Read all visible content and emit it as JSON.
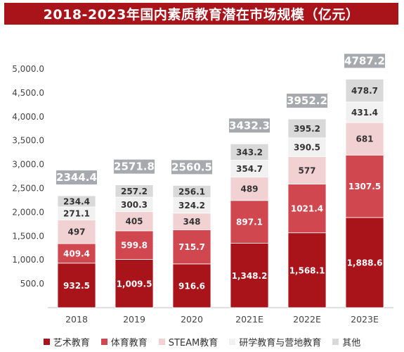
{
  "chart_data": {
    "type": "bar",
    "stacked": true,
    "title": "2018-2023年国内素质教育潜在市场规模（亿元）",
    "categories": [
      "2018",
      "2019",
      "2020",
      "2021E",
      "2022E",
      "2023E"
    ],
    "series": [
      {
        "name": "艺术教育",
        "color": "#a8141a",
        "values": [
          932.5,
          1009.5,
          916.6,
          1348.2,
          1568.1,
          1888.6
        ],
        "labels": [
          "932.5",
          "1,009.5",
          "916.6",
          "1,348.2",
          "1,568.1",
          "1,888.6"
        ]
      },
      {
        "name": "体育教育",
        "color": "#d04750",
        "values": [
          409.4,
          599.8,
          715.7,
          897.1,
          1021.4,
          1307.5
        ],
        "labels": [
          "409.4",
          "599.8",
          "715.7",
          "897.1",
          "1021.4",
          "1307.5"
        ]
      },
      {
        "name": "STEAM教育",
        "color": "#f2d1d2",
        "values": [
          497,
          405,
          348,
          489,
          577,
          681
        ],
        "labels": [
          "497",
          "405",
          "348",
          "489",
          "577",
          "681"
        ]
      },
      {
        "name": "研学教育与营地教育",
        "color": "#f1f1f1",
        "values": [
          271.1,
          300.3,
          324.2,
          354.7,
          390.5,
          431.4
        ],
        "labels": [
          "271.1",
          "300.3",
          "324.2",
          "354.7",
          "390.5",
          "431.4"
        ]
      },
      {
        "name": "其他",
        "color": "#d9d9d9",
        "values": [
          234.4,
          257.2,
          256.1,
          343.2,
          395.2,
          478.7
        ],
        "labels": [
          "234.4",
          "257.2",
          "256.1",
          "343.2",
          "395.2",
          "478.7"
        ]
      }
    ],
    "totals": [
      "2344.4",
      "2571.8",
      "2560.5",
      "3432.3",
      "3952.2",
      "4787.2"
    ],
    "yticks": [
      "500.0",
      "1,000.0",
      "1,500.0",
      "2,000.0",
      "2,500.0",
      "3,000.0",
      "3,500.0",
      "4,000.0",
      "4,500.0",
      "5,000.0"
    ],
    "ytick_values": [
      500,
      1000,
      1500,
      2000,
      2500,
      3000,
      3500,
      4000,
      4500,
      5000
    ],
    "ylim": [
      0,
      5000
    ],
    "grid": false,
    "legend_position": "bottom",
    "total_box_color": "#a6a9ad"
  }
}
